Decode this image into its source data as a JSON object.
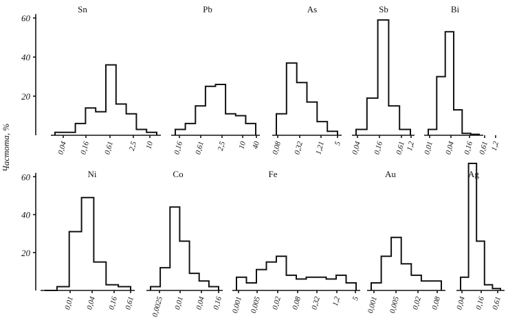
{
  "chart_data": {
    "type": "bar",
    "ylabel": "Частота, %",
    "panels": [
      {
        "yticks": [
          "20",
          "40",
          "60"
        ],
        "ylim": [
          0,
          65
        ],
        "groups": [
          {
            "element": "Sn",
            "ticks": [
              "0,04",
              "0,16",
              "0,61",
              "2,5",
              "10"
            ],
            "values": [
              1.5,
              1.5,
              6,
              14,
              12,
              36,
              16,
              11,
              3,
              1.5
            ]
          },
          {
            "element": "Pb",
            "ticks": [
              "0,16",
              "0,61",
              "2,5",
              "10",
              "40"
            ],
            "values": [
              3,
              6,
              15,
              25,
              26,
              11,
              10,
              6
            ]
          },
          {
            "element": "As",
            "ticks": [
              "0,08",
              "0,32",
              "1,21",
              "5"
            ],
            "values": [
              11,
              37,
              27,
              17,
              7,
              2
            ]
          },
          {
            "element": "Sb",
            "ticks": [
              "0,04",
              "0,16",
              "0,61",
              "1,2"
            ],
            "values": [
              3,
              19,
              59,
              15,
              3
            ]
          },
          {
            "element": "Bi",
            "ticks": [
              "0,01",
              "0,04",
              "0,16",
              "0,61",
              "1,2"
            ],
            "values": [
              3,
              30,
              53,
              13,
              1,
              0.5
            ]
          }
        ]
      },
      {
        "yticks": [
          "20",
          "40",
          "60"
        ],
        "ylim": [
          0,
          67
        ],
        "groups": [
          {
            "element": "Ni",
            "ticks": [
              "0,01",
              "0,04",
              "0,16",
              "0,61"
            ],
            "values": [
              0,
              2,
              31,
              49,
              15,
              3,
              2
            ]
          },
          {
            "element": "Co",
            "ticks": [
              "0,0025",
              "0,01",
              "0,04",
              "0,16"
            ],
            "values": [
              2,
              12,
              44,
              26,
              9,
              5,
              2
            ]
          },
          {
            "element": "Fe",
            "ticks": [
              "0,001",
              "0,005",
              "0,02",
              "0,08",
              "0,32",
              "1,2",
              "5"
            ],
            "values": [
              7,
              4,
              11,
              15,
              18,
              8,
              6,
              7,
              7,
              6,
              8,
              4
            ]
          },
          {
            "element": "Au",
            "ticks": [
              "0,001",
              "0,005",
              "0,02",
              "0,08"
            ],
            "values": [
              4,
              18,
              28,
              14,
              8,
              5,
              5
            ]
          },
          {
            "element": "Ag",
            "ticks": [
              "0,04",
              "0,16",
              "0,61"
            ],
            "values": [
              7,
              67,
              26,
              3,
              1
            ]
          }
        ]
      }
    ]
  }
}
